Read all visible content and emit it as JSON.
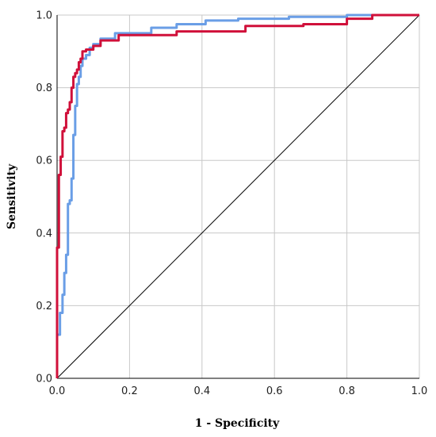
{
  "chart_data": {
    "type": "line",
    "xlabel": "1 - Specificity",
    "ylabel": "Sensitivity",
    "xlim": [
      0,
      1
    ],
    "ylim": [
      0,
      1
    ],
    "xticks": [
      "0.0",
      "0.2",
      "0.4",
      "0.6",
      "0.8",
      "1.0"
    ],
    "yticks": [
      "0.0",
      "0.2",
      "0.4",
      "0.6",
      "0.8",
      "1.0"
    ],
    "grid": true,
    "legend": "none",
    "reference_line": {
      "x": [
        0,
        1
      ],
      "y": [
        0,
        1
      ],
      "color": "#000000"
    },
    "series": [
      {
        "color": "#6a9ee6",
        "x": [
          0,
          0.0,
          0.008,
          0.008,
          0.015,
          0.015,
          0.02,
          0.02,
          0.025,
          0.025,
          0.03,
          0.03,
          0.035,
          0.035,
          0.04,
          0.04,
          0.045,
          0.045,
          0.05,
          0.05,
          0.055,
          0.055,
          0.06,
          0.06,
          0.065,
          0.065,
          0.07,
          0.07,
          0.08,
          0.08,
          0.09,
          0.09,
          0.1,
          0.1,
          0.12,
          0.12,
          0.16,
          0.16,
          0.26,
          0.26,
          0.33,
          0.33,
          0.41,
          0.41,
          0.5,
          0.5,
          0.64,
          0.64,
          0.8,
          0.8,
          1.0
        ],
        "y": [
          0,
          0.12,
          0.12,
          0.18,
          0.18,
          0.23,
          0.23,
          0.29,
          0.29,
          0.34,
          0.34,
          0.48,
          0.48,
          0.49,
          0.49,
          0.55,
          0.55,
          0.67,
          0.67,
          0.75,
          0.75,
          0.81,
          0.81,
          0.83,
          0.83,
          0.86,
          0.86,
          0.88,
          0.88,
          0.89,
          0.89,
          0.91,
          0.91,
          0.92,
          0.92,
          0.935,
          0.935,
          0.95,
          0.95,
          0.965,
          0.965,
          0.975,
          0.975,
          0.985,
          0.985,
          0.99,
          0.99,
          0.995,
          0.995,
          1.0,
          1.0
        ]
      },
      {
        "color": "#d0103a",
        "x": [
          0,
          0.0,
          0.005,
          0.005,
          0.01,
          0.01,
          0.015,
          0.015,
          0.02,
          0.02,
          0.025,
          0.025,
          0.03,
          0.03,
          0.035,
          0.035,
          0.04,
          0.04,
          0.045,
          0.045,
          0.05,
          0.05,
          0.055,
          0.055,
          0.06,
          0.06,
          0.065,
          0.065,
          0.07,
          0.07,
          0.08,
          0.08,
          0.1,
          0.1,
          0.12,
          0.12,
          0.17,
          0.17,
          0.33,
          0.33,
          0.52,
          0.52,
          0.68,
          0.68,
          0.8,
          0.8,
          0.87,
          0.87,
          1.0
        ],
        "y": [
          0,
          0.36,
          0.36,
          0.56,
          0.56,
          0.61,
          0.61,
          0.68,
          0.68,
          0.69,
          0.69,
          0.73,
          0.73,
          0.74,
          0.74,
          0.76,
          0.76,
          0.8,
          0.8,
          0.83,
          0.83,
          0.84,
          0.84,
          0.85,
          0.85,
          0.87,
          0.87,
          0.88,
          0.88,
          0.9,
          0.9,
          0.905,
          0.905,
          0.915,
          0.915,
          0.93,
          0.93,
          0.945,
          0.945,
          0.955,
          0.955,
          0.97,
          0.97,
          0.975,
          0.975,
          0.99,
          0.99,
          1.0,
          1.0
        ]
      }
    ]
  }
}
